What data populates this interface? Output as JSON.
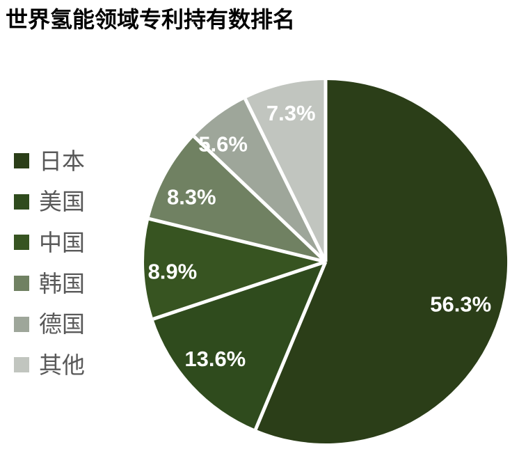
{
  "chart_data": {
    "type": "pie",
    "title": "世界氢能领域专利持有数排名",
    "categories": [
      "日本",
      "美国",
      "中国",
      "韩国",
      "德国",
      "其他"
    ],
    "values": [
      56.3,
      13.6,
      8.9,
      8.3,
      5.6,
      7.3
    ],
    "labels": [
      "56.3%",
      "13.6%",
      "8.9%",
      "8.3%",
      "5.6%",
      "7.3%"
    ],
    "colors": [
      "#2B3E18",
      "#2F4B1D",
      "#375421",
      "#708162",
      "#9EA69A",
      "#C1C5BF"
    ],
    "unit": "%",
    "start_angle_deg": 0,
    "direction": "clockwise",
    "legend_position": "left",
    "slice_label_color": "#FFFFFF",
    "slice_border_color": "#FFFFFF",
    "legend_text_color": "#595959",
    "title_color": "#000000",
    "background": "#FFFFFF"
  }
}
